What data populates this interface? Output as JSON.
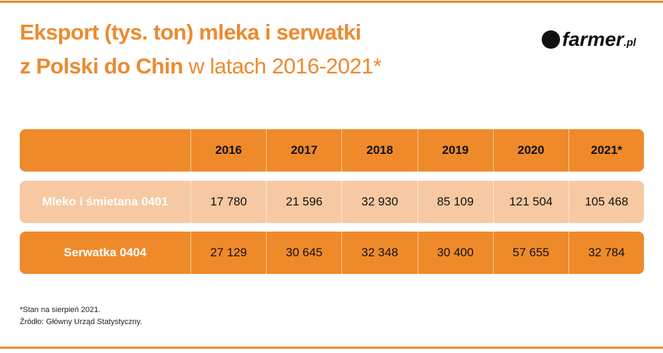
{
  "title": {
    "line1": "Eksport (tys. ton) mleka i serwatki",
    "line2_bold": "z Polski do Chin",
    "line2_rest": "w latach 2016-2021*"
  },
  "logo": {
    "name": "farmer",
    "suffix": ".pl"
  },
  "table": {
    "columns": [
      "2016",
      "2017",
      "2018",
      "2019",
      "2020",
      "2021*"
    ],
    "rows": [
      {
        "label": "Mleko i śmietana 0401",
        "values": [
          "17 780",
          "21 596",
          "32 930",
          "85 109",
          "121 504",
          "105 468"
        ]
      },
      {
        "label": "Serwatka 0404",
        "values": [
          "27 129",
          "30 645",
          "32 348",
          "30 400",
          "57 655",
          "32 784"
        ]
      }
    ]
  },
  "footnotes": [
    "*Stan na sierpień 2021.",
    "Źródło: Główny Urząd Statystyczny."
  ]
}
